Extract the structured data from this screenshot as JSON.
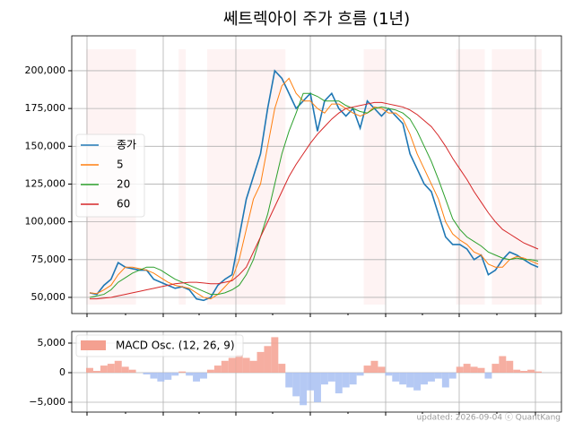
{
  "chart_data": [
    {
      "type": "line",
      "title": "쎄트렉아이 주가 흐름 (1년)",
      "series": [
        {
          "name": "종가",
          "color": "#1f77b4",
          "values": [
            53000,
            52000,
            58000,
            62000,
            73000,
            70000,
            69000,
            68000,
            68000,
            62000,
            60000,
            58000,
            56000,
            57000,
            55000,
            49000,
            48000,
            50000,
            58000,
            62000,
            65000,
            90000,
            115000,
            130000,
            145000,
            175000,
            200000,
            195000,
            185000,
            175000,
            180000,
            185000,
            160000,
            180000,
            185000,
            175000,
            170000,
            175000,
            162000,
            180000,
            175000,
            170000,
            175000,
            170000,
            165000,
            145000,
            135000,
            125000,
            120000,
            105000,
            90000,
            85000,
            85000,
            82000,
            75000,
            78000,
            65000,
            68000,
            75000,
            80000,
            78000,
            75000,
            72000,
            70000
          ]
        },
        {
          "name": "5",
          "color": "#ff7f0e",
          "values": [
            53000,
            52500,
            55000,
            58000,
            65000,
            70000,
            70000,
            69000,
            68000,
            66000,
            63000,
            60000,
            58000,
            57000,
            56000,
            53000,
            50000,
            49000,
            52000,
            57000,
            62000,
            75000,
            95000,
            115000,
            125000,
            150000,
            175000,
            190000,
            195000,
            185000,
            180000,
            180000,
            175000,
            172000,
            178000,
            178000,
            175000,
            172000,
            170000,
            172000,
            176000,
            175000,
            172000,
            172000,
            168000,
            158000,
            145000,
            135000,
            125000,
            115000,
            100000,
            92000,
            88000,
            85000,
            80000,
            78000,
            72000,
            70000,
            70000,
            75000,
            77000,
            76000,
            74000,
            72000
          ]
        },
        {
          "name": "20",
          "color": "#2ca02c",
          "values": [
            50000,
            51000,
            52000,
            55000,
            60000,
            63000,
            66000,
            68000,
            70000,
            70000,
            68000,
            65000,
            62000,
            60000,
            58000,
            56000,
            54000,
            52000,
            52000,
            53000,
            55000,
            58000,
            65000,
            75000,
            90000,
            105000,
            125000,
            145000,
            160000,
            172000,
            185000,
            185000,
            183000,
            180000,
            180000,
            180000,
            177000,
            175000,
            173000,
            172000,
            175000,
            176000,
            175000,
            174000,
            172000,
            168000,
            160000,
            150000,
            140000,
            128000,
            115000,
            102000,
            95000,
            90000,
            87000,
            84000,
            80000,
            78000,
            76000,
            75000,
            76000,
            75000,
            75000,
            74000
          ]
        },
        {
          "name": "60",
          "color": "#d62728",
          "values": [
            49000,
            49000,
            49500,
            50000,
            51000,
            52000,
            53000,
            54000,
            55000,
            56000,
            57000,
            58000,
            59000,
            59500,
            60000,
            60000,
            59500,
            59000,
            59000,
            60000,
            61000,
            65000,
            70000,
            80000,
            90000,
            100000,
            110000,
            120000,
            130000,
            138000,
            145000,
            152000,
            158000,
            163000,
            168000,
            172000,
            175000,
            176000,
            177000,
            178000,
            179000,
            179000,
            178000,
            177000,
            176000,
            174000,
            171000,
            167000,
            163000,
            157000,
            150000,
            142000,
            135000,
            128000,
            120000,
            113000,
            106000,
            100000,
            95000,
            92000,
            89000,
            86000,
            84000,
            82000
          ]
        }
      ],
      "ylim": [
        39300,
        223100
      ],
      "yticks": [
        {
          "value": 50000,
          "label": "50,000"
        },
        {
          "value": 75000,
          "label": "75,000"
        },
        {
          "value": 100000,
          "label": "100,000"
        },
        {
          "value": 125000,
          "label": "125,000"
        },
        {
          "value": 150000,
          "label": "150,000"
        },
        {
          "value": 175000,
          "label": "175,000"
        },
        {
          "value": 200000,
          "label": "200,000"
        }
      ],
      "grid": true,
      "legend": "center left"
    },
    {
      "type": "area",
      "series": [
        {
          "name": "MACD Osc. (12, 26, 9)",
          "color": "#f4a090",
          "negative_color": "#a8bff2",
          "values": [
            800,
            300,
            1200,
            1500,
            2000,
            1000,
            500,
            0,
            -300,
            -1000,
            -1500,
            -1200,
            -500,
            200,
            -500,
            -1500,
            -1000,
            500,
            1200,
            2000,
            2500,
            3000,
            2500,
            2000,
            3500,
            4500,
            6000,
            1500,
            -2500,
            -4000,
            -5500,
            -3000,
            -5000,
            -2000,
            -1500,
            -3500,
            -2500,
            -2000,
            -500,
            1200,
            2000,
            1000,
            -500,
            -1500,
            -2000,
            -2500,
            -3000,
            -2000,
            -1500,
            -1000,
            -2500,
            -1000,
            1000,
            1500,
            1000,
            800,
            -1000,
            1500,
            2800,
            2000,
            500,
            300,
            500,
            200
          ]
        }
      ],
      "ylim": [
        -6670,
        6970
      ],
      "yticks": [
        {
          "value": -5000,
          "label": "−5,000"
        },
        0,
        {
          "value": 5000,
          "label": "5,000"
        }
      ],
      "grid": true,
      "legend": "upper left"
    }
  ],
  "footer": "updated: 2026-09-04 ⓒ QuantKang"
}
